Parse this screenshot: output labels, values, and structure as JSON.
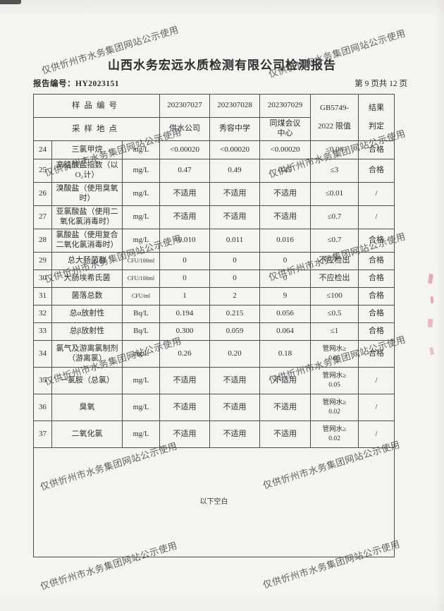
{
  "colors": {
    "paper": "#f4f3f0",
    "text": "#2b2b2b",
    "border": "#4c4c4c",
    "watermark_gray": "#4b4b4b",
    "seal_red": "#cd5573"
  },
  "doc": {
    "title": "山西水务宏远水质检测有限公司检测报告",
    "report_no": "报告编号：HY2023151",
    "page_info": "第 9 页共 12 页",
    "watermark": "仅供忻州市水务集团网站公示使用",
    "footer_note": "以下空白"
  },
  "table": {
    "header": {
      "row1_label": "样品编号",
      "row2_label": "采样地点",
      "sample_ids": [
        "202307027",
        "202307028",
        "202307029"
      ],
      "locations": [
        "供水公司",
        "秀容中学",
        "同煤会议\n中心"
      ],
      "limit_line1": "GB5749-",
      "limit_line2": "2022 限值",
      "result_line1": "结果",
      "result_line2": "判定"
    },
    "rows": [
      {
        "no": "24",
        "name": "三氯甲烷",
        "unit": "mg/L",
        "v1": "<0.00020",
        "v2": "<0.00020",
        "v3": "<0.00020",
        "limit": "≤0.06",
        "result": "合格"
      },
      {
        "no": "25",
        "name": "高锰酸盐指数（以O₂计）",
        "unit": "mg/L",
        "v1": "0.47",
        "v2": "0.49",
        "v3": "0.45",
        "limit": "≤3",
        "result": "合格"
      },
      {
        "no": "26",
        "name": "溴酸盐（使用臭氧时）",
        "unit": "mg/L",
        "v1": "不适用",
        "v2": "不适用",
        "v3": "不适用",
        "limit": "≤0.01",
        "result": "/"
      },
      {
        "no": "27",
        "name": "亚氯酸盐（使用二氧化氯消毒时）",
        "unit": "mg/L",
        "v1": "不适用",
        "v2": "不适用",
        "v3": "不适用",
        "limit": "≤0.7",
        "result": "/"
      },
      {
        "no": "28",
        "name": "氯酸盐（使用复合二氧化氯消毒时）",
        "unit": "mg/L",
        "v1": "<0.010",
        "v2": "0.011",
        "v3": "0.016",
        "limit": "≤0.7",
        "result": "合格"
      },
      {
        "no": "29",
        "name": "总大肠菌群",
        "unit": "CFU/100ml",
        "v1": "0",
        "v2": "0",
        "v3": "0",
        "limit": "不应检出",
        "result": "合格"
      },
      {
        "no": "30",
        "name": "大肠埃希氏菌",
        "unit": "CFU/100ml",
        "v1": "0",
        "v2": "0",
        "v3": "0",
        "limit": "不应检出",
        "result": "合格"
      },
      {
        "no": "31",
        "name": "菌落总数",
        "unit": "CFU/ml",
        "v1": "1",
        "v2": "2",
        "v3": "9",
        "limit": "≤100",
        "result": "合格"
      },
      {
        "no": "32",
        "name": "总α放射性",
        "unit": "Bq/L",
        "v1": "0.194",
        "v2": "0.215",
        "v3": "0.056",
        "limit": "≤0.5",
        "result": "合格"
      },
      {
        "no": "33",
        "name": "总β放射性",
        "unit": "Bq/L",
        "v1": "0.300",
        "v2": "0.059",
        "v3": "0.064",
        "limit": "≤1",
        "result": "合格"
      },
      {
        "no": "34",
        "name": "氯气及游离氯制剂（游离氯）",
        "unit": "mg/L",
        "v1": "0.26",
        "v2": "0.20",
        "v3": "0.18",
        "limit": "管网水≥\n0.05",
        "result": "合格"
      },
      {
        "no": "35",
        "name": "一氯胺（总氯）",
        "unit": "mg/L",
        "v1": "不适用",
        "v2": "不适用",
        "v3": "不适用",
        "limit": "管网水≥\n0.05",
        "result": "/"
      },
      {
        "no": "36",
        "name": "臭氧",
        "unit": "mg/L",
        "v1": "不适用",
        "v2": "不适用",
        "v3": "不适用",
        "limit": "管网水≥\n0.02",
        "result": "/"
      },
      {
        "no": "37",
        "name": "二氧化氯",
        "unit": "mg/L",
        "v1": "不适用",
        "v2": "不适用",
        "v3": "不适用",
        "limit": "管网水≥\n0.02",
        "result": "/"
      }
    ]
  }
}
